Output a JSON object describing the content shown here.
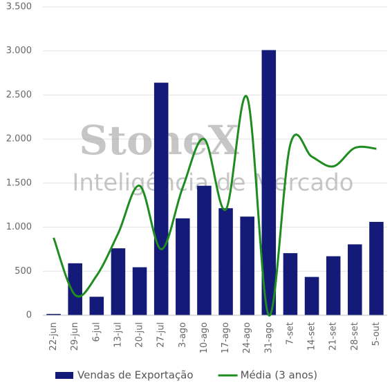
{
  "chart_data": {
    "type": "bar_line",
    "watermark": [
      "StoneX",
      "Inteligência de Mercado"
    ],
    "categories": [
      "22-jun",
      "29-jun",
      "6-jul",
      "13-jul",
      "20-jul",
      "27-jul",
      "3-ago",
      "10-ago",
      "17-ago",
      "24-ago",
      "31-ago",
      "7-set",
      "14-set",
      "21-set",
      "28-set",
      "5-out"
    ],
    "series": [
      {
        "name": "Vendas de Exportação",
        "type": "bar",
        "color": "#141a78",
        "values": [
          15,
          590,
          210,
          760,
          545,
          2640,
          1100,
          1470,
          1215,
          1120,
          3010,
          705,
          435,
          670,
          805,
          1060
        ]
      },
      {
        "name": "Média (3 anos)",
        "type": "line",
        "color": "#1e8c1e",
        "values": [
          880,
          230,
          450,
          930,
          1470,
          750,
          1450,
          2000,
          1200,
          2470,
          0,
          1940,
          1800,
          1690,
          1900,
          1890
        ]
      }
    ],
    "ylim": [
      0,
      3500
    ],
    "yticks": [
      0,
      500,
      {
        "value": 1000,
        "label": "1.000"
      },
      {
        "value": 1500,
        "label": "1.500"
      },
      {
        "value": 2000,
        "label": "2.000"
      },
      {
        "value": 2500,
        "label": "2.500"
      },
      {
        "value": 3000,
        "label": "3.000"
      },
      {
        "value": 3500,
        "label": "3.500"
      }
    ],
    "grid": true,
    "legend": "bottom"
  }
}
